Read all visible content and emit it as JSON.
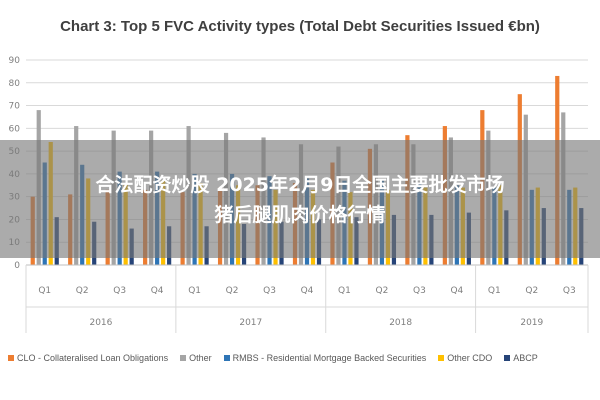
{
  "title": "Chart 3: Top 5 FVC Activity types (Total Debt Securities Issued €bn)",
  "overlay": {
    "line1": "合法配资炒股 2025年2月9日全国主要批发市场",
    "line2": "猪后腿肌肉价格行情"
  },
  "chart_data": {
    "type": "bar",
    "title": "Chart 3: Top 5 FVC Activity types (Total Debt Securities Issued €bn)",
    "categories": [
      "Q1",
      "Q2",
      "Q3",
      "Q4",
      "Q1",
      "Q2",
      "Q3",
      "Q4",
      "Q1",
      "Q2",
      "Q3",
      "Q4",
      "Q1",
      "Q2",
      "Q3"
    ],
    "groups": [
      {
        "label": "2016",
        "count": 4
      },
      {
        "label": "2017",
        "count": 4
      },
      {
        "label": "2018",
        "count": 4
      },
      {
        "label": "2019",
        "count": 3
      }
    ],
    "ylim": [
      0,
      90
    ],
    "yticks": [
      0,
      10,
      20,
      30,
      40,
      50,
      60,
      70,
      80,
      90
    ],
    "grid": true,
    "legend_position": "bottom",
    "series": [
      {
        "name": "CLO - Collateralised Loan Obligations",
        "color": "#ed7d31",
        "values": [
          30,
          31,
          33,
          33,
          32,
          34,
          35,
          36,
          45,
          51,
          57,
          61,
          68,
          75,
          83
        ]
      },
      {
        "name": "Other",
        "color": "#a5a5a5",
        "values": [
          68,
          61,
          59,
          59,
          61,
          58,
          56,
          53,
          52,
          53,
          53,
          56,
          59,
          66,
          67
        ]
      },
      {
        "name": "RMBS - Residential Mortgage Backed Securities",
        "color": "#2e75b6",
        "values": [
          45,
          44,
          41,
          41,
          40,
          40,
          39,
          38,
          37,
          37,
          36,
          35,
          34,
          33,
          33
        ]
      },
      {
        "name": "Other CDO",
        "color": "#ffc000",
        "values": [
          54,
          38,
          36,
          37,
          36,
          35,
          33,
          33,
          32,
          33,
          34,
          34,
          35,
          34,
          34
        ]
      },
      {
        "name": "ABCP",
        "color": "#264478",
        "values": [
          21,
          19,
          16,
          17,
          17,
          18,
          19,
          20,
          21,
          22,
          22,
          23,
          24,
          25,
          25
        ]
      }
    ]
  }
}
